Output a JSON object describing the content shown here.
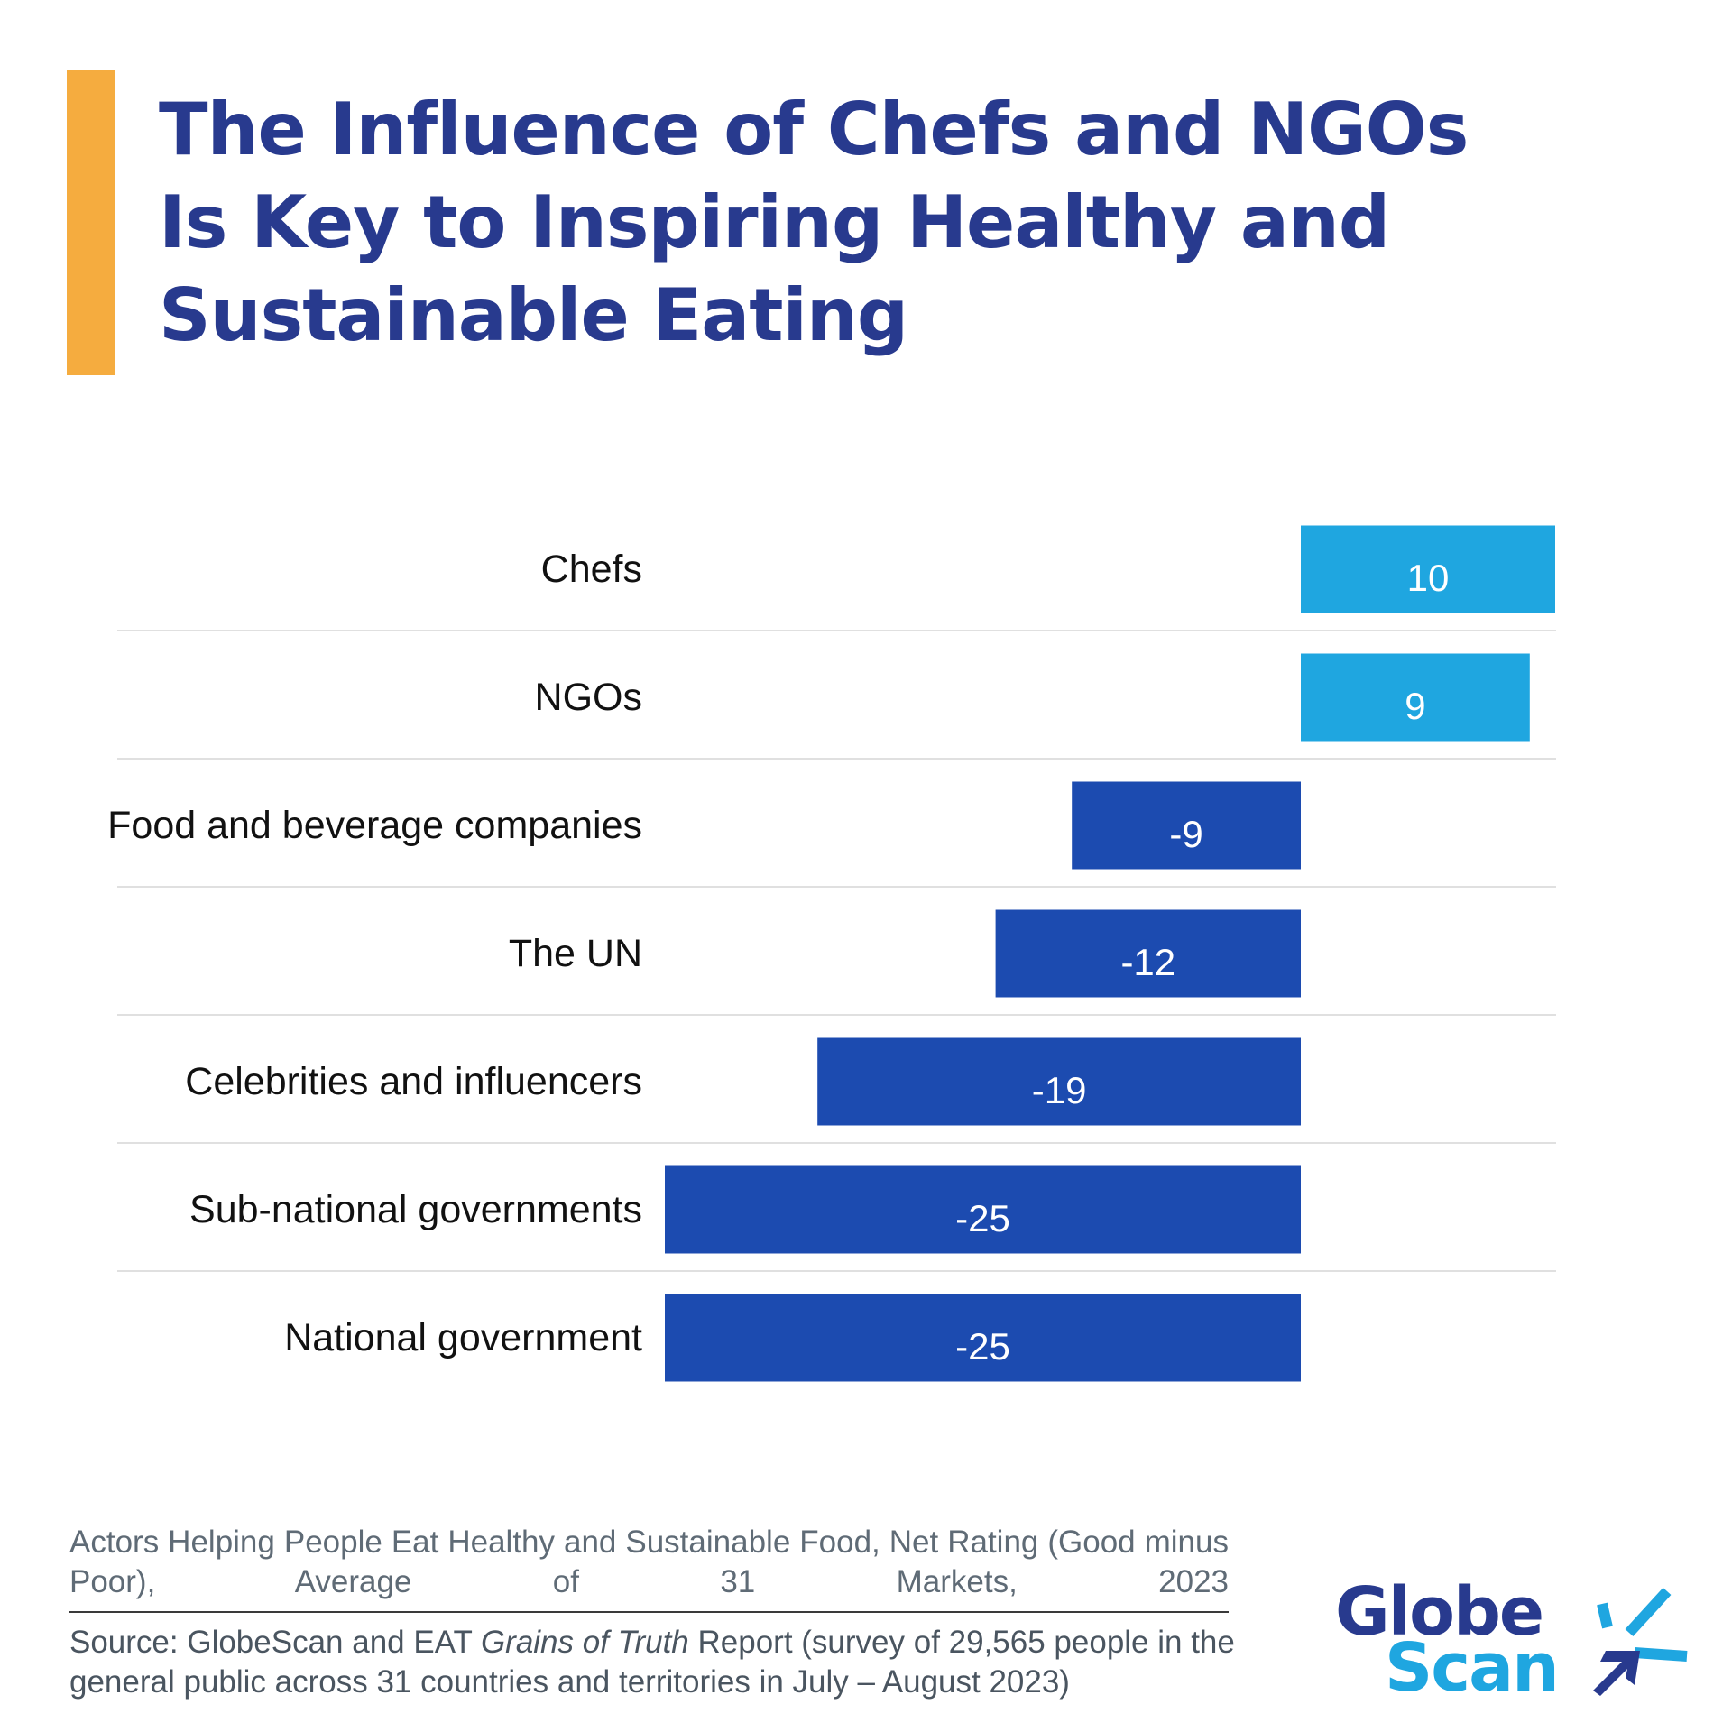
{
  "colors": {
    "accent": "#F5AC3F",
    "title": "#283A8E",
    "positive": "#1FA6E0",
    "negative": "#1C4BB0",
    "label_text": "#111111",
    "value_text": "#FFFFFF",
    "divider": "#E0E0E0"
  },
  "header": {
    "title_lines": [
      "The Influence of Chefs and NGOs",
      "Is Key to Inspiring Healthy and",
      "Sustainable Eating"
    ]
  },
  "chart_data": {
    "type": "bar",
    "orientation": "horizontal",
    "title": "The Influence of Chefs and NGOs Is Key to Inspiring Healthy and Sustainable Eating",
    "categories": [
      "Chefs",
      "NGOs",
      "Food and beverage companies",
      "The UN",
      "Celebrities and influencers",
      "Sub-national governments",
      "National government"
    ],
    "values": [
      10,
      9,
      -9,
      -12,
      -19,
      -25,
      -25
    ],
    "value_labels": [
      "10",
      "9",
      "-9",
      "-12",
      "-19",
      "-25",
      "-25"
    ],
    "xlim": [
      -25,
      10
    ],
    "data_labels": true,
    "grid": false,
    "legend": "none",
    "xlabel": "",
    "ylabel": ""
  },
  "footnote": {
    "description": "Actors Helping People Eat Healthy and Sustainable Food, Net Rating (Good minus Poor), Average of 31 Markets, 2023",
    "source_prefix": "Source: GlobeScan and EAT ",
    "source_italic": "Grains of Truth",
    "source_suffix": " Report (survey of 29,565 people in the general public across 31 countries and territories in July – August 2023)"
  },
  "logo": {
    "word1": "Globe",
    "word2": "Scan",
    "colors": {
      "word1": "#283A8E",
      "word2": "#1FA6E0",
      "rays": "#1FA6E0",
      "arrow": "#283A8E"
    }
  }
}
